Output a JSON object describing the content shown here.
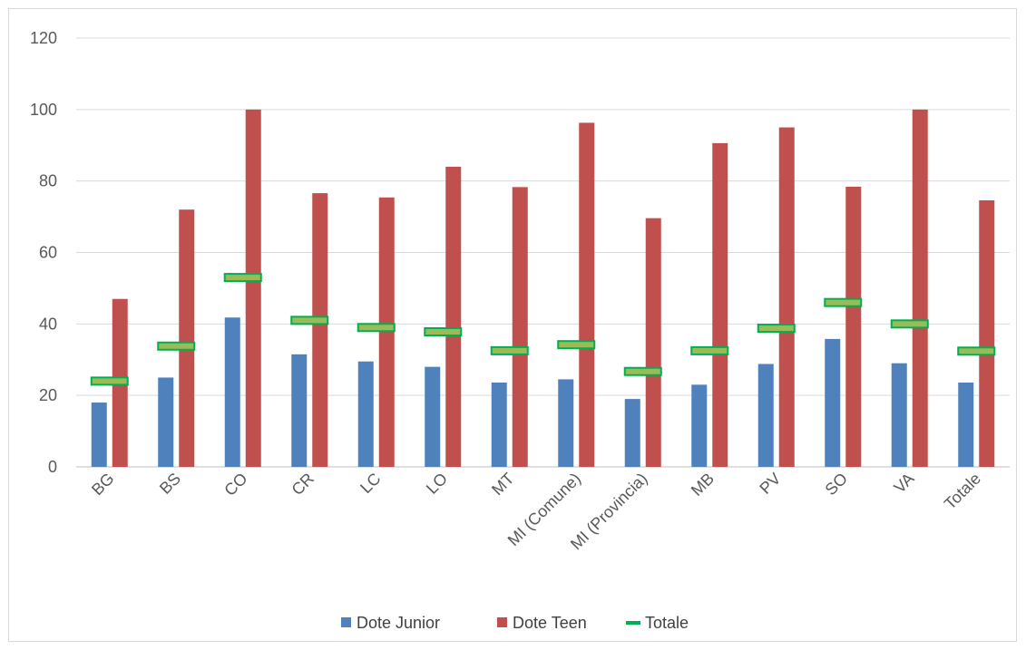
{
  "chart_data": {
    "type": "bar",
    "categories": [
      "BG",
      "BS",
      "CO",
      "CR",
      "LC",
      "LO",
      "MT",
      "MI (Comune)",
      "MI (Provincia)",
      "MB",
      "PV",
      "SO",
      "VA",
      "Totale"
    ],
    "series": [
      {
        "name": "Dote Junior",
        "kind": "bar",
        "color": "#4F81BD",
        "values": [
          18,
          25,
          41.8,
          31.5,
          29.5,
          28,
          23.6,
          24.5,
          19,
          23,
          28.8,
          35.8,
          29,
          23.6
        ]
      },
      {
        "name": "Dote Teen",
        "kind": "bar",
        "color": "#C0504D",
        "values": [
          47,
          72,
          100,
          76.6,
          75.4,
          84,
          78.3,
          96.3,
          69.6,
          90.6,
          95,
          78.4,
          100,
          74.6
        ]
      },
      {
        "name": "Totale",
        "kind": "marker",
        "color": "#9BBB59",
        "border": "#00B050",
        "values": [
          24,
          33.8,
          53,
          41,
          39,
          37.8,
          32.5,
          34.2,
          26.7,
          32.5,
          38.8,
          46,
          40,
          32.4
        ]
      }
    ],
    "yticks": [
      "0",
      "20",
      "40",
      "60",
      "80",
      "100",
      "120"
    ],
    "ylim": [
      0,
      120
    ],
    "grid": true,
    "legend": "bottom"
  }
}
